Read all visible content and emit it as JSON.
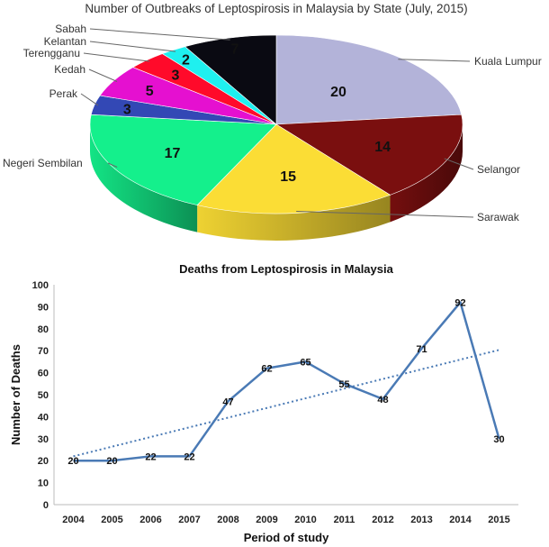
{
  "chart_data": [
    {
      "type": "pie",
      "title": "Number of Outbreaks of Leptospirosis in Malaysia by State (July, 2015)",
      "slices": [
        {
          "label": "Kuala Lumpur",
          "value": 20,
          "color": "#b3b3d9"
        },
        {
          "label": "Selangor",
          "value": 14,
          "color": "#7a0f0f"
        },
        {
          "label": "Sarawak",
          "value": 15,
          "color": "#fbdd35"
        },
        {
          "label": "Negeri Sembilan",
          "value": 17,
          "color": "#14f08c"
        },
        {
          "label": "Perak",
          "value": 3,
          "color": "#3348b5"
        },
        {
          "label": "Kedah",
          "value": 5,
          "color": "#e510d0"
        },
        {
          "label": "Terengganu",
          "value": 3,
          "color": "#ff0a2a"
        },
        {
          "label": "Kelantan",
          "value": 2,
          "color": "#1ff0ef"
        },
        {
          "label": "Sabah",
          "value": 7,
          "color": "#0a0a12"
        }
      ]
    },
    {
      "type": "line",
      "title": "Deaths from Leptospirosis in Malaysia",
      "xlabel": "Period of study",
      "ylabel": "Number of Deaths",
      "ylim": [
        0,
        100
      ],
      "yticks": [
        0,
        10,
        20,
        30,
        40,
        50,
        60,
        70,
        80,
        90,
        100
      ],
      "grid": false,
      "categories": [
        "2004",
        "2005",
        "2006",
        "2007",
        "2008",
        "2009",
        "2010",
        "2011",
        "2012",
        "2013",
        "2014",
        "2015"
      ],
      "series": [
        {
          "values": [
            20,
            20,
            22,
            22,
            47,
            62,
            65,
            55,
            48,
            71,
            92,
            30
          ],
          "color": "#4a7ab5",
          "data_labels": true
        }
      ],
      "trendline": {
        "style": "dotted",
        "color": "#4a7ab5"
      }
    }
  ]
}
